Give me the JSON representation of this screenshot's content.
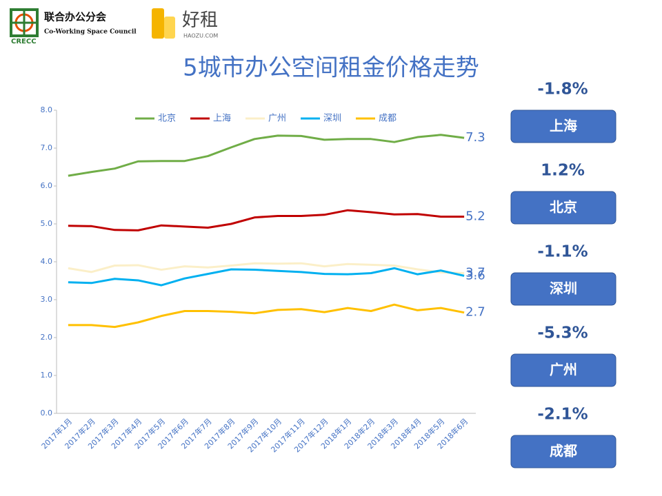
{
  "header": {
    "org_name": "联合办公分会",
    "org_english": "Co-Working Space Council",
    "org_abbr": "CRECC",
    "brand": "好租",
    "brand_url": "HAOZU.COM"
  },
  "chart_data": {
    "type": "line",
    "title": "5城市办公空间租金价格走势",
    "categories": [
      "2017年1月",
      "2017年2月",
      "2017年3月",
      "2017年4月",
      "2017年5月",
      "2017年6月",
      "2017年7月",
      "2017年8月",
      "2017年9月",
      "2017年10月",
      "2017年11月",
      "2017年12月",
      "2018年1月",
      "2018年2月",
      "2018年3月",
      "2018年4月",
      "2018年5月",
      "2018年6月"
    ],
    "series": [
      {
        "name": "北京",
        "color": "#70ad47",
        "values": [
          6.27,
          6.37,
          6.46,
          6.65,
          6.66,
          6.66,
          6.79,
          7.02,
          7.24,
          7.33,
          7.32,
          7.22,
          7.24,
          7.24,
          7.16,
          7.29,
          7.35,
          7.27
        ],
        "value_labels": [
          null,
          null,
          null,
          null,
          null,
          null,
          null,
          null,
          null,
          null,
          null,
          null,
          null,
          null,
          null,
          null,
          null,
          "7.3"
        ]
      },
      {
        "name": "上海",
        "color": "#c00000",
        "values": [
          4.95,
          4.94,
          4.84,
          4.83,
          4.96,
          4.93,
          4.9,
          5.0,
          5.17,
          5.21,
          5.21,
          5.24,
          5.36,
          5.31,
          5.25,
          5.26,
          5.19,
          5.19
        ],
        "value_labels": [
          null,
          null,
          null,
          null,
          null,
          null,
          null,
          null,
          null,
          null,
          null,
          null,
          null,
          null,
          null,
          null,
          null,
          "5.2"
        ]
      },
      {
        "name": "广州",
        "color": "#fbefc8",
        "values": [
          3.83,
          3.73,
          3.9,
          3.91,
          3.79,
          3.88,
          3.85,
          3.9,
          3.96,
          3.95,
          3.96,
          3.88,
          3.94,
          3.92,
          3.9,
          3.8,
          3.72,
          3.7
        ],
        "value_labels": [
          null,
          null,
          null,
          null,
          null,
          null,
          null,
          null,
          null,
          null,
          null,
          null,
          null,
          null,
          null,
          null,
          null,
          "3.7"
        ]
      },
      {
        "name": "深圳",
        "color": "#00b0f0",
        "values": [
          3.46,
          3.44,
          3.55,
          3.51,
          3.38,
          3.56,
          3.68,
          3.8,
          3.79,
          3.76,
          3.73,
          3.68,
          3.67,
          3.7,
          3.83,
          3.67,
          3.77,
          3.63
        ],
        "value_labels": [
          null,
          null,
          null,
          null,
          null,
          null,
          null,
          null,
          null,
          null,
          null,
          null,
          null,
          null,
          null,
          null,
          null,
          "3.6"
        ]
      },
      {
        "name": "成都",
        "color": "#ffc000",
        "values": [
          2.33,
          2.33,
          2.28,
          2.4,
          2.57,
          2.7,
          2.7,
          2.68,
          2.64,
          2.73,
          2.75,
          2.67,
          2.78,
          2.7,
          2.87,
          2.72,
          2.78,
          2.66
        ],
        "value_labels": [
          null,
          null,
          null,
          null,
          null,
          null,
          null,
          null,
          null,
          null,
          null,
          null,
          null,
          null,
          null,
          null,
          null,
          "2.7"
        ]
      }
    ],
    "ylim": [
      0,
      8
    ],
    "yticks": [
      {
        "value": 0,
        "label": "0.0"
      },
      {
        "value": 1,
        "label": "1.0"
      },
      {
        "value": 2,
        "label": "2.0"
      },
      {
        "value": 3,
        "label": "3.0"
      },
      {
        "value": 4,
        "label": "4.0"
      },
      {
        "value": 5,
        "label": "5.0"
      },
      {
        "value": 6,
        "label": "6.0"
      },
      {
        "value": 7,
        "label": "7.0"
      },
      {
        "value": 8,
        "label": "8.0"
      }
    ],
    "legend": "top"
  },
  "sidebar": [
    {
      "change": "-1.8%",
      "city": "上海"
    },
    {
      "change": "1.2%",
      "city": "北京"
    },
    {
      "change": "-1.1%",
      "city": "深圳"
    },
    {
      "change": "-5.3%",
      "city": "广州"
    },
    {
      "change": "-2.1%",
      "city": "成都"
    }
  ]
}
